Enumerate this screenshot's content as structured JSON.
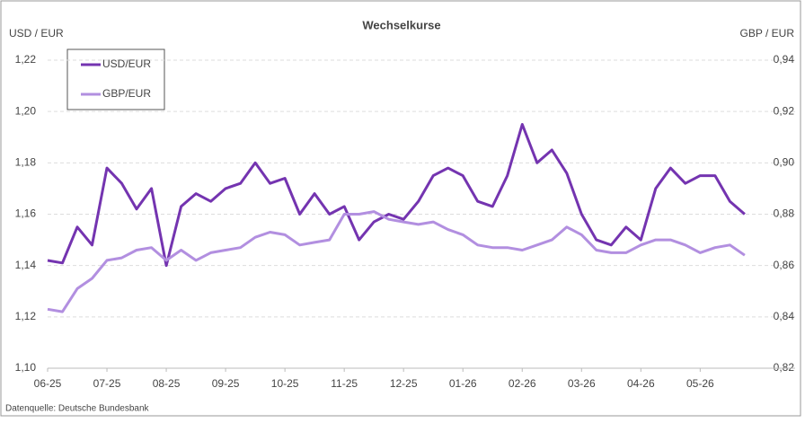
{
  "chart_data": {
    "type": "line",
    "title": "Wechselkurse",
    "y_label": "USD / EUR",
    "y2_label": "GBP / EUR",
    "source": "Datenquelle: Deutsche Bundesbank",
    "xlim": [
      0,
      12.6
    ],
    "xticks": [
      {
        "value": 0,
        "label": "06-25"
      },
      {
        "value": 1,
        "label": "07-25"
      },
      {
        "value": 2,
        "label": "08-25"
      },
      {
        "value": 3,
        "label": "09-25"
      },
      {
        "value": 4,
        "label": "10-25"
      },
      {
        "value": 5,
        "label": "11-25"
      },
      {
        "value": 6,
        "label": "12-25"
      },
      {
        "value": 7,
        "label": "01-26"
      },
      {
        "value": 8,
        "label": "02-26"
      },
      {
        "value": 9,
        "label": "03-26"
      },
      {
        "value": 10,
        "label": "04-26"
      },
      {
        "value": 11,
        "label": "05-26"
      }
    ],
    "ylim": [
      1.1,
      1.22
    ],
    "yticks": [
      {
        "value": 1.1,
        "label": "1,10"
      },
      {
        "value": 1.12,
        "label": "1,12"
      },
      {
        "value": 1.14,
        "label": "1,14"
      },
      {
        "value": 1.16,
        "label": "1,16"
      },
      {
        "value": 1.18,
        "label": "1,18"
      },
      {
        "value": 1.2,
        "label": "1,20"
      },
      {
        "value": 1.22,
        "label": "1,22"
      }
    ],
    "y2lim": [
      0.82,
      0.94
    ],
    "y2ticks": [
      {
        "value": 0.82,
        "label": "0,82"
      },
      {
        "value": 0.84,
        "label": "0,84"
      },
      {
        "value": 0.86,
        "label": "0,86"
      },
      {
        "value": 0.88,
        "label": "0,88"
      },
      {
        "value": 0.9,
        "label": "0,90"
      },
      {
        "value": 0.92,
        "label": "0,92"
      },
      {
        "value": 0.94,
        "label": "0,94"
      }
    ],
    "grid": true,
    "x": [
      0,
      0.25,
      0.5,
      0.75,
      1,
      1.25,
      1.5,
      1.75,
      2,
      2.25,
      2.5,
      2.75,
      3,
      3.25,
      3.5,
      3.75,
      4,
      4.25,
      4.5,
      4.75,
      5,
      5.25,
      5.5,
      5.75,
      6,
      6.25,
      6.5,
      6.75,
      7,
      7.25,
      7.5,
      7.75,
      8,
      8.25,
      8.5,
      8.75,
      9,
      9.25,
      9.5,
      9.75,
      10,
      10.25,
      10.5,
      10.75,
      11,
      11.25,
      11.5,
      11.75
    ],
    "series": [
      {
        "name": "USD/EUR",
        "color": "#7434b0",
        "values": [
          1.142,
          1.141,
          1.155,
          1.148,
          1.178,
          1.172,
          1.162,
          1.17,
          1.14,
          1.163,
          1.168,
          1.165,
          1.17,
          1.172,
          1.18,
          1.172,
          1.174,
          1.16,
          1.168,
          1.16,
          1.163,
          1.15,
          1.157,
          1.16,
          1.158,
          1.165,
          1.175,
          1.178,
          1.175,
          1.165,
          1.163,
          1.175,
          1.195,
          1.18,
          1.185,
          1.176,
          1.16,
          1.15,
          1.148,
          1.155,
          1.15,
          1.17,
          1.178,
          1.172,
          1.175,
          1.175,
          1.165,
          1.16
        ]
      },
      {
        "name": "GBP/EUR",
        "color": "#b28fe0",
        "axis": "y2",
        "values": [
          0.843,
          0.842,
          0.851,
          0.855,
          0.862,
          0.863,
          0.866,
          0.867,
          0.862,
          0.866,
          0.862,
          0.865,
          0.866,
          0.867,
          0.871,
          0.873,
          0.872,
          0.868,
          0.869,
          0.87,
          0.88,
          0.88,
          0.881,
          0.878,
          0.877,
          0.876,
          0.877,
          0.874,
          0.872,
          0.868,
          0.867,
          0.867,
          0.866,
          0.868,
          0.87,
          0.875,
          0.872,
          0.866,
          0.865,
          0.865,
          0.868,
          0.87,
          0.87,
          0.868,
          0.865,
          0.867,
          0.868,
          0.864
        ]
      }
    ]
  }
}
